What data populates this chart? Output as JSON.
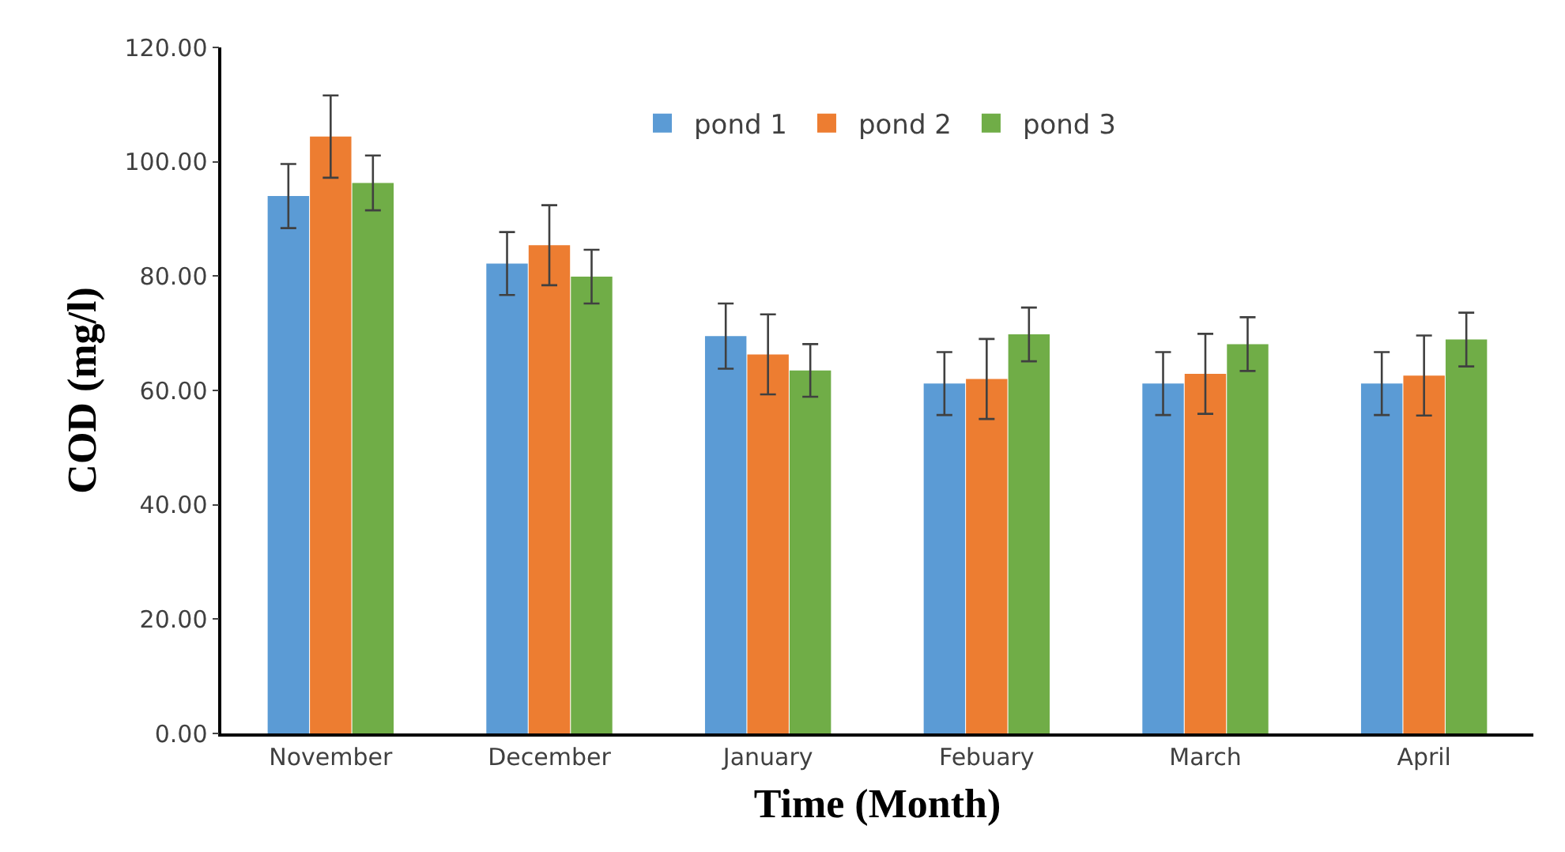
{
  "chart_data": {
    "type": "bar",
    "xlabel": "Time (Month)",
    "ylabel": "COD (mg/l)",
    "categories": [
      "November",
      "December",
      "January",
      "Febuary",
      "March",
      "April"
    ],
    "series": [
      {
        "name": "pond 1",
        "color": "#5b9bd5",
        "values": [
          94.0,
          82.2,
          69.5,
          61.2,
          61.2,
          61.2
        ],
        "errors": [
          5.6,
          5.5,
          5.7,
          5.5,
          5.5,
          5.5
        ]
      },
      {
        "name": "pond 2",
        "color": "#ed7d31",
        "values": [
          104.4,
          85.4,
          66.3,
          62.0,
          62.9,
          62.6
        ],
        "errors": [
          7.2,
          7.0,
          7.0,
          7.0,
          7.0,
          7.0
        ]
      },
      {
        "name": "pond 3",
        "color": "#70ad47",
        "values": [
          96.3,
          79.9,
          63.5,
          69.8,
          68.1,
          68.9
        ],
        "errors": [
          4.8,
          4.7,
          4.6,
          4.7,
          4.7,
          4.7
        ]
      }
    ],
    "ylim": [
      0,
      120
    ],
    "yticks": [
      {
        "value": 0,
        "label": "0.00"
      },
      {
        "value": 20,
        "label": "20.00"
      },
      {
        "value": 40,
        "label": "40.00"
      },
      {
        "value": 60,
        "label": "60.00"
      },
      {
        "value": 80,
        "label": "80.00"
      },
      {
        "value": 100,
        "label": "100.00"
      },
      {
        "value": 120,
        "label": "120.00"
      }
    ],
    "grid": false,
    "legend": "top"
  }
}
